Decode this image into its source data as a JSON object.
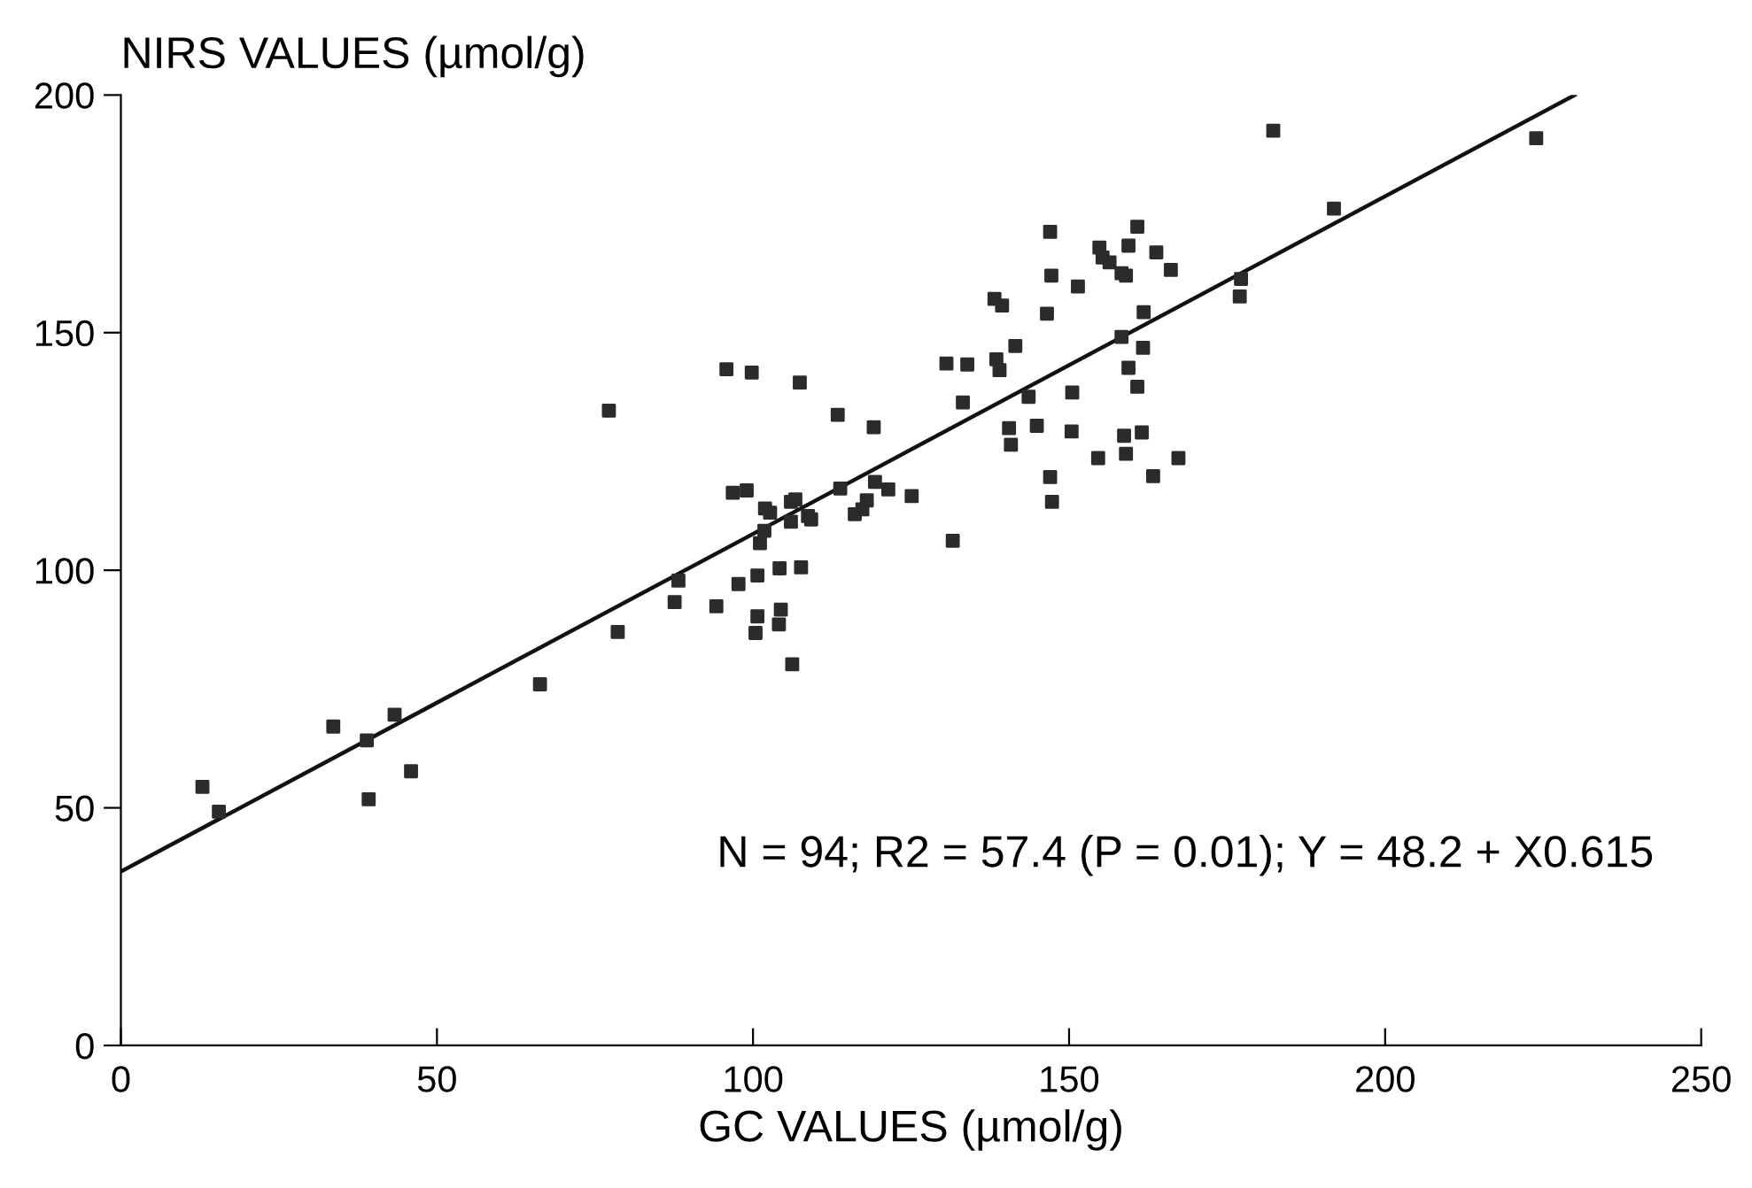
{
  "chart_data": {
    "type": "scatter",
    "xlabel": "GC VALUES (µmol/g)",
    "ylabel": "NIRS VALUES (µmol/g)",
    "xlim": [
      0,
      250
    ],
    "ylim": [
      0,
      200
    ],
    "xticks": [
      0,
      50,
      100,
      150,
      200,
      250
    ],
    "yticks": [
      0,
      50,
      100,
      150,
      200
    ],
    "grid": false,
    "legend": false,
    "marker": "square",
    "annotations": [
      "N = 94; R2 = 57.4 (P = 0.01); Y = 48.2 + X0.615"
    ],
    "series": [
      {
        "color": "#2b2b2b",
        "x": [
          12.9,
          15.5,
          33.6,
          38.9,
          39.2,
          43.3,
          45.9,
          66.3,
          78.6,
          77.2,
          87.6,
          88.2,
          94.2,
          95.8,
          99.8,
          97.7,
          96.8,
          99.0,
          100.7,
          100.4,
          100.7,
          101.1,
          101.8,
          101.9,
          102.7,
          104.2,
          104.1,
          104.4,
          106.2,
          106.0,
          106.7,
          106.0,
          107.4,
          107.6,
          108.7,
          109.2,
          113.4,
          113.8,
          116.1,
          117.3,
          118.0,
          119.1,
          119.3,
          121.4,
          125.1,
          131.6,
          130.6,
          133.9,
          133.2,
          138.2,
          139.4,
          138.5,
          139.0,
          141.5,
          140.5,
          140.8,
          143.6,
          144.9,
          146.5,
          147.0,
          147.2,
          147.0,
          147.3,
          150.4,
          150.5,
          151.4,
          154.6,
          154.8,
          155.3,
          156.4,
          158.3,
          158.3,
          159.0,
          158.7,
          159.0,
          159.4,
          159.4,
          160.8,
          160.8,
          161.5,
          161.8,
          161.7,
          163.3,
          163.8,
          166.1,
          167.3,
          177.2,
          177.0,
          182.3,
          191.9,
          223.9
        ],
        "values": [
          54.4,
          49.2,
          67.1,
          64.2,
          51.8,
          69.6,
          57.7,
          76.0,
          87.0,
          133.6,
          93.3,
          97.8,
          92.4,
          142.3,
          141.6,
          97.1,
          116.3,
          116.8,
          98.9,
          86.8,
          90.3,
          105.7,
          108.3,
          113.0,
          112.1,
          100.4,
          88.6,
          91.7,
          80.2,
          114.4,
          114.9,
          110.2,
          139.5,
          100.6,
          111.4,
          110.7,
          132.7,
          117.2,
          111.8,
          112.8,
          114.7,
          130.1,
          118.6,
          117.0,
          115.6,
          106.2,
          143.5,
          143.3,
          135.3,
          157.1,
          155.7,
          144.4,
          142.1,
          147.2,
          129.9,
          126.4,
          136.5,
          130.4,
          154.0,
          171.2,
          162.0,
          119.6,
          114.4,
          129.2,
          137.4,
          159.7,
          123.6,
          167.9,
          165.8,
          164.8,
          149.1,
          162.5,
          162.0,
          128.3,
          124.5,
          168.3,
          142.6,
          172.3,
          138.6,
          129.0,
          154.3,
          146.8,
          119.8,
          166.9,
          163.2,
          123.6,
          161.3,
          157.6,
          192.5,
          176.1,
          190.9
        ]
      },
      {
        "type": "line",
        "color": "#111111",
        "marker": "none",
        "line_style": "solid",
        "x": [
          0,
          230
        ],
        "values": [
          36.6,
          200
        ]
      }
    ]
  }
}
